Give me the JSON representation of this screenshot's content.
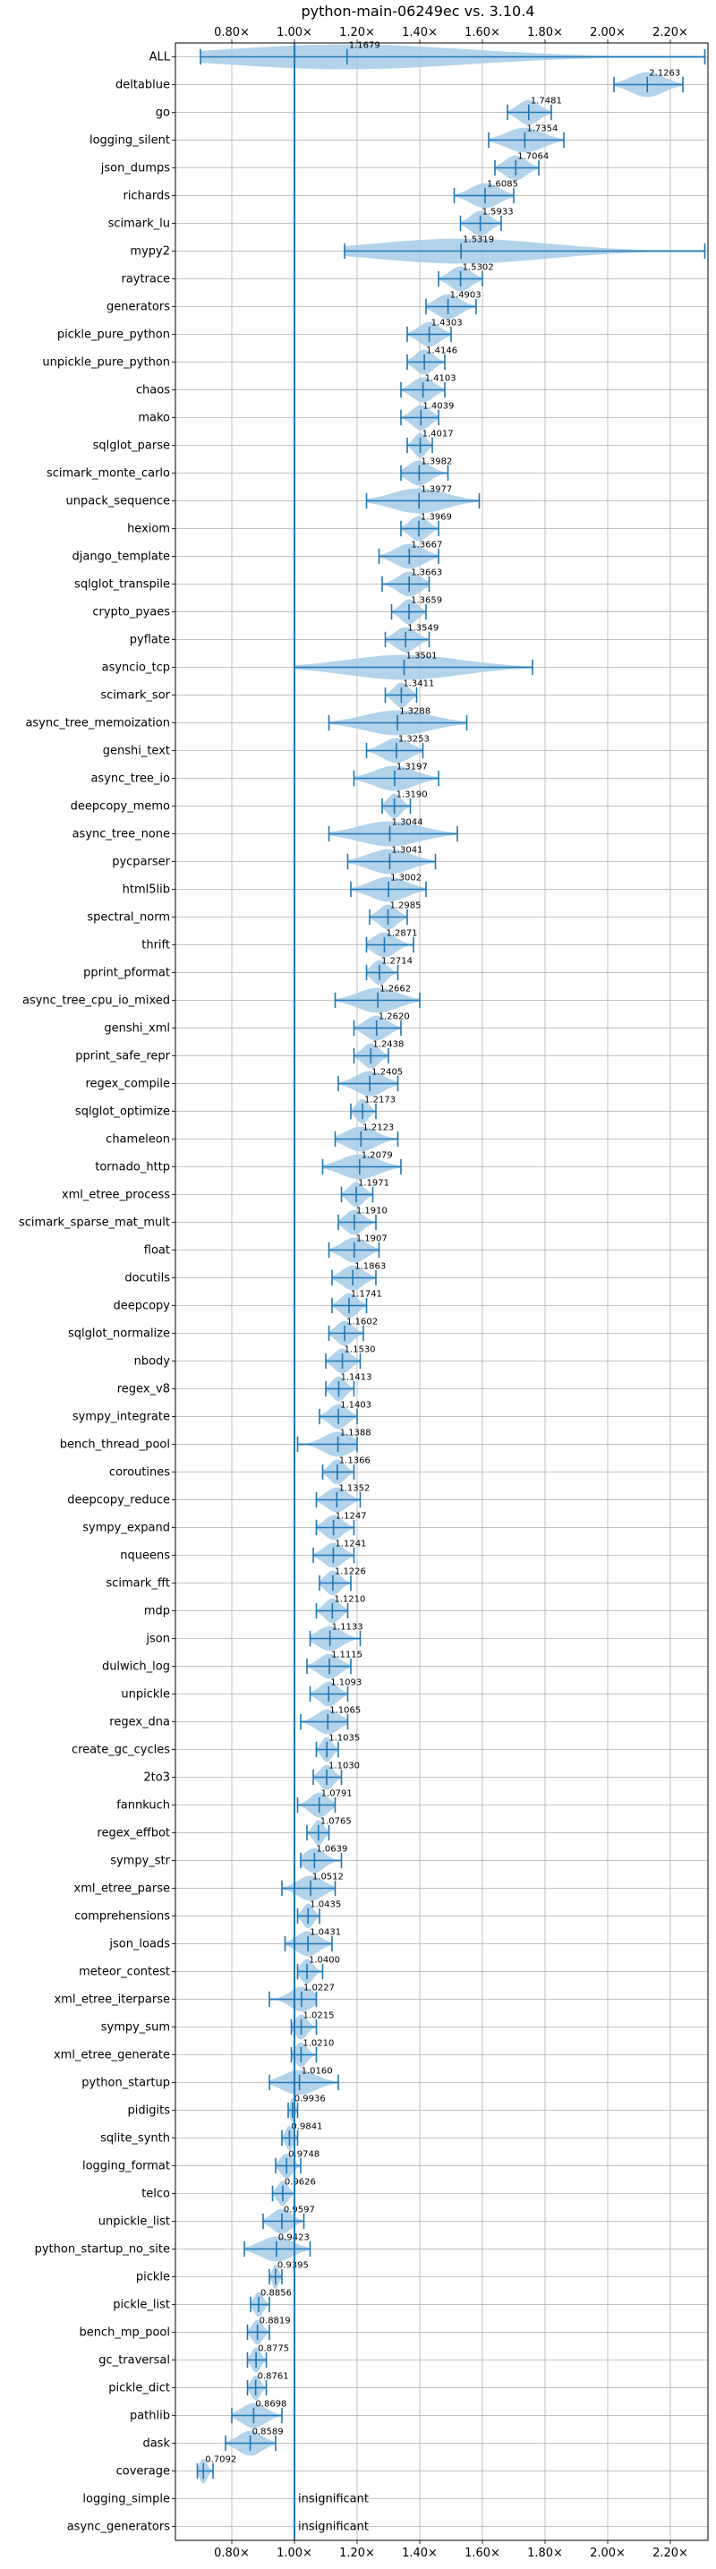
{
  "chart_data": {
    "type": "violin",
    "title": "python-main-06249ec vs. 3.10.4",
    "xlim": [
      0.62,
      2.32
    ],
    "ticks": [
      {
        "value": 0.8,
        "label": "0.80×"
      },
      {
        "value": 1.0,
        "label": "1.00×"
      },
      {
        "value": 1.2,
        "label": "1.20×"
      },
      {
        "value": 1.4,
        "label": "1.40×"
      },
      {
        "value": 1.6,
        "label": "1.60×"
      },
      {
        "value": 1.8,
        "label": "1.80×"
      },
      {
        "value": 2.0,
        "label": "2.00×"
      },
      {
        "value": 2.2,
        "label": "2.20×"
      }
    ],
    "reference_line": 1.0,
    "grid": true,
    "colors": {
      "violin": "#a6cbe8",
      "line": "#1f77b4",
      "grid": "#b0b0b0"
    },
    "benchmarks": [
      {
        "name": "ALL",
        "mean": 1.1679,
        "mean_label": "1.1679",
        "min": 0.7,
        "max": 2.31
      },
      {
        "name": "deltablue",
        "mean": 2.1263,
        "mean_label": "2.1263",
        "min": 2.02,
        "max": 2.24
      },
      {
        "name": "go",
        "mean": 1.7481,
        "mean_label": "1.7481",
        "min": 1.68,
        "max": 1.82
      },
      {
        "name": "logging_silent",
        "mean": 1.7354,
        "mean_label": "1.7354",
        "min": 1.62,
        "max": 1.86
      },
      {
        "name": "json_dumps",
        "mean": 1.7064,
        "mean_label": "1.7064",
        "min": 1.64,
        "max": 1.78
      },
      {
        "name": "richards",
        "mean": 1.6085,
        "mean_label": "1.6085",
        "min": 1.51,
        "max": 1.7
      },
      {
        "name": "scimark_lu",
        "mean": 1.5933,
        "mean_label": "1.5933",
        "min": 1.53,
        "max": 1.66
      },
      {
        "name": "mypy2",
        "mean": 1.5319,
        "mean_label": "1.5319",
        "min": 1.16,
        "max": 2.31
      },
      {
        "name": "raytrace",
        "mean": 1.5302,
        "mean_label": "1.5302",
        "min": 1.46,
        "max": 1.6
      },
      {
        "name": "generators",
        "mean": 1.4903,
        "mean_label": "1.4903",
        "min": 1.42,
        "max": 1.58
      },
      {
        "name": "pickle_pure_python",
        "mean": 1.4303,
        "mean_label": "1.4303",
        "min": 1.36,
        "max": 1.5
      },
      {
        "name": "unpickle_pure_python",
        "mean": 1.4146,
        "mean_label": "1.4146",
        "min": 1.36,
        "max": 1.48
      },
      {
        "name": "chaos",
        "mean": 1.4103,
        "mean_label": "1.4103",
        "min": 1.34,
        "max": 1.48
      },
      {
        "name": "mako",
        "mean": 1.4039,
        "mean_label": "1.4039",
        "min": 1.34,
        "max": 1.46
      },
      {
        "name": "sqlglot_parse",
        "mean": 1.4017,
        "mean_label": "1.4017",
        "min": 1.36,
        "max": 1.44
      },
      {
        "name": "scimark_monte_carlo",
        "mean": 1.3982,
        "mean_label": "1.3982",
        "min": 1.34,
        "max": 1.49
      },
      {
        "name": "unpack_sequence",
        "mean": 1.3977,
        "mean_label": "1.3977",
        "min": 1.23,
        "max": 1.59
      },
      {
        "name": "hexiom",
        "mean": 1.3969,
        "mean_label": "1.3969",
        "min": 1.34,
        "max": 1.46
      },
      {
        "name": "django_template",
        "mean": 1.3667,
        "mean_label": "1.3667",
        "min": 1.27,
        "max": 1.46
      },
      {
        "name": "sqlglot_transpile",
        "mean": 1.3663,
        "mean_label": "1.3663",
        "min": 1.28,
        "max": 1.43
      },
      {
        "name": "crypto_pyaes",
        "mean": 1.3659,
        "mean_label": "1.3659",
        "min": 1.31,
        "max": 1.42
      },
      {
        "name": "pyflate",
        "mean": 1.3549,
        "mean_label": "1.3549",
        "min": 1.29,
        "max": 1.43
      },
      {
        "name": "asyncio_tcp",
        "mean": 1.3501,
        "mean_label": "1.3501",
        "min": 1.0,
        "max": 1.76
      },
      {
        "name": "scimark_sor",
        "mean": 1.3411,
        "mean_label": "1.3411",
        "min": 1.29,
        "max": 1.39
      },
      {
        "name": "async_tree_memoization",
        "mean": 1.3288,
        "mean_label": "1.3288",
        "min": 1.11,
        "max": 1.55
      },
      {
        "name": "genshi_text",
        "mean": 1.3253,
        "mean_label": "1.3253",
        "min": 1.23,
        "max": 1.41
      },
      {
        "name": "async_tree_io",
        "mean": 1.3197,
        "mean_label": "1.3197",
        "min": 1.19,
        "max": 1.46
      },
      {
        "name": "deepcopy_memo",
        "mean": 1.319,
        "mean_label": "1.3190",
        "min": 1.28,
        "max": 1.37
      },
      {
        "name": "async_tree_none",
        "mean": 1.3044,
        "mean_label": "1.3044",
        "min": 1.11,
        "max": 1.52
      },
      {
        "name": "pycparser",
        "mean": 1.3041,
        "mean_label": "1.3041",
        "min": 1.17,
        "max": 1.45
      },
      {
        "name": "html5lib",
        "mean": 1.3002,
        "mean_label": "1.3002",
        "min": 1.18,
        "max": 1.42
      },
      {
        "name": "spectral_norm",
        "mean": 1.2985,
        "mean_label": "1.2985",
        "min": 1.24,
        "max": 1.36
      },
      {
        "name": "thrift",
        "mean": 1.2871,
        "mean_label": "1.2871",
        "min": 1.23,
        "max": 1.38
      },
      {
        "name": "pprint_pformat",
        "mean": 1.2714,
        "mean_label": "1.2714",
        "min": 1.23,
        "max": 1.33
      },
      {
        "name": "async_tree_cpu_io_mixed",
        "mean": 1.2662,
        "mean_label": "1.2662",
        "min": 1.13,
        "max": 1.4
      },
      {
        "name": "genshi_xml",
        "mean": 1.262,
        "mean_label": "1.2620",
        "min": 1.19,
        "max": 1.34
      },
      {
        "name": "pprint_safe_repr",
        "mean": 1.2438,
        "mean_label": "1.2438",
        "min": 1.19,
        "max": 1.3
      },
      {
        "name": "regex_compile",
        "mean": 1.2405,
        "mean_label": "1.2405",
        "min": 1.14,
        "max": 1.33
      },
      {
        "name": "sqlglot_optimize",
        "mean": 1.2173,
        "mean_label": "1.2173",
        "min": 1.18,
        "max": 1.26
      },
      {
        "name": "chameleon",
        "mean": 1.2123,
        "mean_label": "1.2123",
        "min": 1.13,
        "max": 1.33
      },
      {
        "name": "tornado_http",
        "mean": 1.2079,
        "mean_label": "1.2079",
        "min": 1.09,
        "max": 1.34
      },
      {
        "name": "xml_etree_process",
        "mean": 1.1971,
        "mean_label": "1.1971",
        "min": 1.15,
        "max": 1.25
      },
      {
        "name": "scimark_sparse_mat_mult",
        "mean": 1.191,
        "mean_label": "1.1910",
        "min": 1.14,
        "max": 1.26
      },
      {
        "name": "float",
        "mean": 1.1907,
        "mean_label": "1.1907",
        "min": 1.11,
        "max": 1.27
      },
      {
        "name": "docutils",
        "mean": 1.1863,
        "mean_label": "1.1863",
        "min": 1.12,
        "max": 1.26
      },
      {
        "name": "deepcopy",
        "mean": 1.1741,
        "mean_label": "1.1741",
        "min": 1.12,
        "max": 1.23
      },
      {
        "name": "sqlglot_normalize",
        "mean": 1.1602,
        "mean_label": "1.1602",
        "min": 1.11,
        "max": 1.22
      },
      {
        "name": "nbody",
        "mean": 1.153,
        "mean_label": "1.1530",
        "min": 1.1,
        "max": 1.21
      },
      {
        "name": "regex_v8",
        "mean": 1.1413,
        "mean_label": "1.1413",
        "min": 1.1,
        "max": 1.19
      },
      {
        "name": "sympy_integrate",
        "mean": 1.1403,
        "mean_label": "1.1403",
        "min": 1.08,
        "max": 1.2
      },
      {
        "name": "bench_thread_pool",
        "mean": 1.1388,
        "mean_label": "1.1388",
        "min": 1.01,
        "max": 1.2
      },
      {
        "name": "coroutines",
        "mean": 1.1366,
        "mean_label": "1.1366",
        "min": 1.09,
        "max": 1.19
      },
      {
        "name": "deepcopy_reduce",
        "mean": 1.1352,
        "mean_label": "1.1352",
        "min": 1.07,
        "max": 1.21
      },
      {
        "name": "sympy_expand",
        "mean": 1.1247,
        "mean_label": "1.1247",
        "min": 1.07,
        "max": 1.19
      },
      {
        "name": "nqueens",
        "mean": 1.1241,
        "mean_label": "1.1241",
        "min": 1.06,
        "max": 1.19
      },
      {
        "name": "scimark_fft",
        "mean": 1.1226,
        "mean_label": "1.1226",
        "min": 1.08,
        "max": 1.18
      },
      {
        "name": "mdp",
        "mean": 1.121,
        "mean_label": "1.1210",
        "min": 1.07,
        "max": 1.17
      },
      {
        "name": "json",
        "mean": 1.1133,
        "mean_label": "1.1133",
        "min": 1.05,
        "max": 1.21
      },
      {
        "name": "dulwich_log",
        "mean": 1.1115,
        "mean_label": "1.1115",
        "min": 1.04,
        "max": 1.18
      },
      {
        "name": "unpickle",
        "mean": 1.1093,
        "mean_label": "1.1093",
        "min": 1.05,
        "max": 1.17
      },
      {
        "name": "regex_dna",
        "mean": 1.1065,
        "mean_label": "1.1065",
        "min": 1.02,
        "max": 1.17
      },
      {
        "name": "create_gc_cycles",
        "mean": 1.1035,
        "mean_label": "1.1035",
        "min": 1.07,
        "max": 1.14
      },
      {
        "name": "2to3",
        "mean": 1.103,
        "mean_label": "1.1030",
        "min": 1.06,
        "max": 1.15
      },
      {
        "name": "fannkuch",
        "mean": 1.0791,
        "mean_label": "1.0791",
        "min": 1.01,
        "max": 1.13
      },
      {
        "name": "regex_effbot",
        "mean": 1.0765,
        "mean_label": "1.0765",
        "min": 1.04,
        "max": 1.11
      },
      {
        "name": "sympy_str",
        "mean": 1.0639,
        "mean_label": "1.0639",
        "min": 1.02,
        "max": 1.15
      },
      {
        "name": "xml_etree_parse",
        "mean": 1.0512,
        "mean_label": "1.0512",
        "min": 0.96,
        "max": 1.13
      },
      {
        "name": "comprehensions",
        "mean": 1.0435,
        "mean_label": "1.0435",
        "min": 1.01,
        "max": 1.08
      },
      {
        "name": "json_loads",
        "mean": 1.0431,
        "mean_label": "1.0431",
        "min": 0.97,
        "max": 1.12
      },
      {
        "name": "meteor_contest",
        "mean": 1.04,
        "mean_label": "1.0400",
        "min": 1.01,
        "max": 1.09
      },
      {
        "name": "xml_etree_iterparse",
        "mean": 1.0227,
        "mean_label": "1.0227",
        "min": 0.92,
        "max": 1.07
      },
      {
        "name": "sympy_sum",
        "mean": 1.0215,
        "mean_label": "1.0215",
        "min": 0.99,
        "max": 1.07
      },
      {
        "name": "xml_etree_generate",
        "mean": 1.021,
        "mean_label": "1.0210",
        "min": 0.99,
        "max": 1.07
      },
      {
        "name": "python_startup",
        "mean": 1.016,
        "mean_label": "1.0160",
        "min": 0.92,
        "max": 1.14
      },
      {
        "name": "pidigits",
        "mean": 0.9936,
        "mean_label": "0.9936",
        "min": 0.98,
        "max": 1.01
      },
      {
        "name": "sqlite_synth",
        "mean": 0.9841,
        "mean_label": "0.9841",
        "min": 0.96,
        "max": 1.01
      },
      {
        "name": "logging_format",
        "mean": 0.9748,
        "mean_label": "0.9748",
        "min": 0.94,
        "max": 1.02
      },
      {
        "name": "telco",
        "mean": 0.9626,
        "mean_label": "0.9626",
        "min": 0.93,
        "max": 1.0
      },
      {
        "name": "unpickle_list",
        "mean": 0.9597,
        "mean_label": "0.9597",
        "min": 0.9,
        "max": 1.03
      },
      {
        "name": "python_startup_no_site",
        "mean": 0.9423,
        "mean_label": "0.9423",
        "min": 0.84,
        "max": 1.05
      },
      {
        "name": "pickle",
        "mean": 0.9395,
        "mean_label": "0.9395",
        "min": 0.92,
        "max": 0.96
      },
      {
        "name": "pickle_list",
        "mean": 0.8856,
        "mean_label": "0.8856",
        "min": 0.86,
        "max": 0.92
      },
      {
        "name": "bench_mp_pool",
        "mean": 0.8819,
        "mean_label": "0.8819",
        "min": 0.85,
        "max": 0.92
      },
      {
        "name": "gc_traversal",
        "mean": 0.8775,
        "mean_label": "0.8775",
        "min": 0.85,
        "max": 0.91
      },
      {
        "name": "pickle_dict",
        "mean": 0.8761,
        "mean_label": "0.8761",
        "min": 0.85,
        "max": 0.91
      },
      {
        "name": "pathlib",
        "mean": 0.8698,
        "mean_label": "0.8698",
        "min": 0.8,
        "max": 0.96
      },
      {
        "name": "dask",
        "mean": 0.8589,
        "mean_label": "0.8589",
        "min": 0.78,
        "max": 0.94
      },
      {
        "name": "coverage",
        "mean": 0.7092,
        "mean_label": "0.7092",
        "min": 0.69,
        "max": 0.74
      },
      {
        "name": "logging_simple",
        "note": "insignificant"
      },
      {
        "name": "async_generators",
        "note": "insignificant"
      }
    ]
  }
}
